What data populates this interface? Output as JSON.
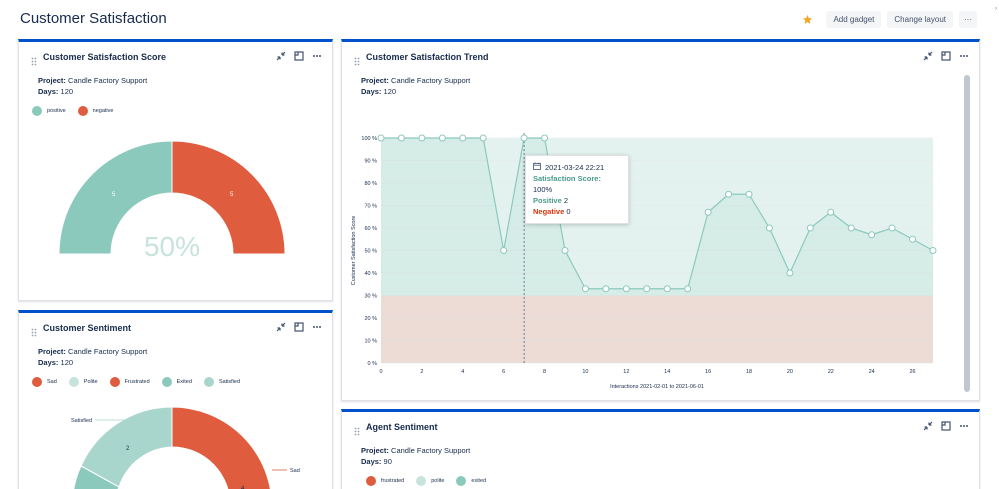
{
  "page": {
    "title": "Customer Satisfaction"
  },
  "toolbar": {
    "add_gadget": "Add gadget",
    "change_layout": "Change layout",
    "more": "···",
    "edge": "›"
  },
  "gadgets": {
    "score": {
      "title": "Customer Satisfaction Score",
      "project_label": "Project:",
      "project_value": "Candle Factory Support",
      "days_label": "Days:",
      "days_value": "120",
      "legend": [
        "positive",
        "negative"
      ],
      "center_value": "50%",
      "positive_value": "5",
      "negative_value": "5"
    },
    "trend": {
      "title": "Customer Satisfaction Trend",
      "project_label": "Project:",
      "project_value": "Candle Factory Support",
      "days_label": "Days:",
      "days_value": "120",
      "tooltip": {
        "date": "2021-03-24 22:21",
        "score_label": "Satisfaction Score:",
        "score_value": "100%",
        "positive_label": "Positive",
        "positive_value": "2",
        "negative_label": "Negative",
        "negative_value": "0"
      }
    },
    "sentiment": {
      "title": "Customer Sentiment",
      "project_label": "Project:",
      "project_value": "Candle Factory Support",
      "days_label": "Days:",
      "days_value": "120",
      "legend": [
        "Sad",
        "Polite",
        "Frustrated",
        "Exited",
        "Satisfied"
      ],
      "labels": {
        "satisfied": "Satisfied",
        "sad": "Sad",
        "v2": "2",
        "v4": "4"
      }
    },
    "agent": {
      "title": "Agent Sentiment",
      "project_label": "Project:",
      "project_value": "Candle Factory Support",
      "days_label": "Days:",
      "days_value": "90",
      "legend": [
        "frustrated",
        "polite",
        "exited"
      ]
    }
  },
  "colors": {
    "teal": "#8cc9bd",
    "red": "#e05c3e",
    "blue": "#0052cc",
    "star": "#f5a623",
    "teal_fill": "#e3f2ee",
    "red_fill": "#fde0da",
    "sad": "#e05c3e",
    "polite": "#c7e3dc",
    "frustrated": "#e05c3e",
    "exited": "#8cc9bd",
    "satisfied": "#a9d6cc"
  },
  "icons": [
    "star-icon",
    "drag-handle-icon",
    "minimize-icon",
    "maximize-icon",
    "more-icon",
    "calendar-icon"
  ],
  "chart_data": {
    "type": "area",
    "title": "",
    "xlabel": "Interactions 2021-02-01 to 2021-06-01",
    "ylabel": "Customer Satisfaction Score",
    "xlim": [
      0,
      27
    ],
    "ylim": [
      0,
      100
    ],
    "x_ticks": [
      0,
      2,
      4,
      6,
      8,
      10,
      12,
      14,
      16,
      18,
      20,
      22,
      24,
      26
    ],
    "y_ticks": [
      "0 %",
      "10 %",
      "20 %",
      "30 %",
      "40 %",
      "50 %",
      "60 %",
      "70 %",
      "80 %",
      "90 %",
      "100 %"
    ],
    "threshold": 30,
    "marker_x": 7,
    "x": [
      0,
      1,
      2,
      3,
      4,
      5,
      6,
      7,
      8,
      9,
      10,
      11,
      12,
      13,
      14,
      15,
      16,
      17,
      18,
      19,
      20,
      21,
      22,
      23,
      24,
      25,
      26,
      27
    ],
    "values": [
      100,
      100,
      100,
      100,
      100,
      100,
      50,
      100,
      100,
      50,
      33,
      33,
      33,
      33,
      33,
      33,
      67,
      75,
      75,
      60,
      40,
      60,
      67,
      60,
      57,
      60,
      55,
      50
    ],
    "grid": true
  }
}
